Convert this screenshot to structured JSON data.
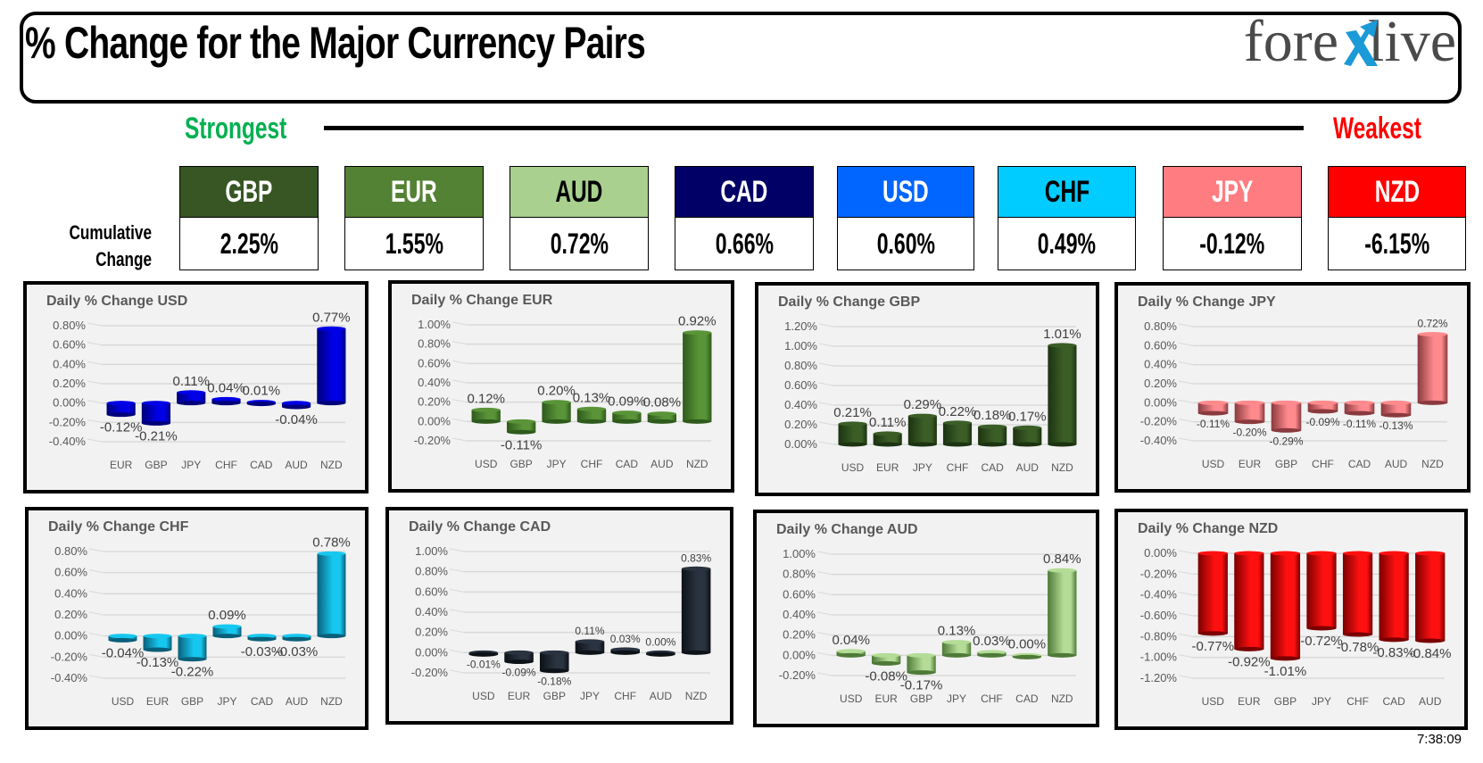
{
  "header": {
    "title": "% Change for the Major Currency Pairs",
    "logo": {
      "left": "fore",
      "mark": "x",
      "right": "live"
    }
  },
  "scale": {
    "strongest_label": "Strongest",
    "weakest_label": "Weakest"
  },
  "cumulative": {
    "label_line1": "Cumulative",
    "label_line2": "Change",
    "currencies": [
      {
        "code": "GBP",
        "value": "2.25%",
        "bg": "#375623",
        "fg": "#ffffff"
      },
      {
        "code": "EUR",
        "value": "1.55%",
        "bg": "#548235",
        "fg": "#ffffff"
      },
      {
        "code": "AUD",
        "value": "0.72%",
        "bg": "#a9d08e",
        "fg": "#000000"
      },
      {
        "code": "CAD",
        "value": "0.66%",
        "bg": "#000066",
        "fg": "#ffffff"
      },
      {
        "code": "USD",
        "value": "0.60%",
        "bg": "#0066ff",
        "fg": "#ffffff"
      },
      {
        "code": "CHF",
        "value": "0.49%",
        "bg": "#00ccff",
        "fg": "#000000"
      },
      {
        "code": "JPY",
        "value": "-0.12%",
        "bg": "#ff7c80",
        "fg": "#ffffff"
      },
      {
        "code": "NZD",
        "value": "-6.15%",
        "bg": "#ff0000",
        "fg": "#ffffff"
      }
    ]
  },
  "timestamp": "7:38:09",
  "chart_data": [
    {
      "type": "bar",
      "title": "Daily % Change USD",
      "categories": [
        "EUR",
        "GBP",
        "JPY",
        "CHF",
        "CAD",
        "AUD",
        "NZD"
      ],
      "values": [
        -0.12,
        -0.21,
        0.11,
        0.04,
        0.01,
        -0.04,
        0.77
      ],
      "labels": [
        "-0.12%",
        "-0.21%",
        "0.11%",
        "0.04%",
        "0.01%",
        "-0.04%",
        "0.77%"
      ],
      "yticks": [
        "0.80%",
        "0.60%",
        "0.40%",
        "0.20%",
        "0.00%",
        "-0.20%",
        "-0.40%"
      ],
      "ylim": [
        -0.4,
        0.8
      ],
      "color": "#0000e6",
      "color_dark": "#00007a",
      "label_size": 15,
      "xlabel": "",
      "ylabel": "",
      "grid": true,
      "legend": "none"
    },
    {
      "type": "bar",
      "title": "Daily % Change EUR",
      "categories": [
        "USD",
        "GBP",
        "JPY",
        "CHF",
        "CAD",
        "AUD",
        "NZD"
      ],
      "values": [
        0.12,
        -0.11,
        0.2,
        0.13,
        0.09,
        0.08,
        0.92
      ],
      "labels": [
        "0.12%",
        "-0.11%",
        "0.20%",
        "0.13%",
        "0.09%",
        "0.08%",
        "0.92%"
      ],
      "yticks": [
        "1.00%",
        "0.80%",
        "0.60%",
        "0.40%",
        "0.20%",
        "0.00%",
        "-0.20%"
      ],
      "ylim": [
        -0.2,
        1.0
      ],
      "color": "#5a9438",
      "color_dark": "#2e5a1c",
      "label_size": 15,
      "xlabel": "",
      "ylabel": "",
      "grid": true,
      "legend": "none"
    },
    {
      "type": "bar",
      "title": "Daily % Change GBP",
      "categories": [
        "USD",
        "EUR",
        "JPY",
        "CHF",
        "CAD",
        "AUD",
        "NZD"
      ],
      "values": [
        0.21,
        0.11,
        0.29,
        0.22,
        0.18,
        0.17,
        1.01
      ],
      "labels": [
        "0.21%",
        "0.11%",
        "0.29%",
        "0.22%",
        "0.18%",
        "0.17%",
        "1.01%"
      ],
      "yticks": [
        "1.20%",
        "1.00%",
        "0.80%",
        "0.60%",
        "0.40%",
        "0.20%",
        "0.00%"
      ],
      "ylim": [
        0.0,
        1.2
      ],
      "color": "#3b5e27",
      "color_dark": "#1c3311",
      "label_size": 15,
      "xlabel": "",
      "ylabel": "",
      "grid": true,
      "legend": "none"
    },
    {
      "type": "bar",
      "title": "Daily % Change JPY",
      "categories": [
        "USD",
        "EUR",
        "GBP",
        "CHF",
        "CAD",
        "AUD",
        "NZD"
      ],
      "values": [
        -0.11,
        -0.2,
        -0.29,
        -0.09,
        -0.11,
        -0.13,
        0.72
      ],
      "labels": [
        "-0.11%",
        "-0.20%",
        "-0.29%",
        "-0.09%",
        "-0.11%",
        "-0.13%",
        "0.72%"
      ],
      "yticks": [
        "0.80%",
        "0.60%",
        "0.40%",
        "0.20%",
        "0.00%",
        "-0.20%",
        "-0.40%"
      ],
      "ylim": [
        -0.4,
        0.8
      ],
      "color": "#ff8a8e",
      "color_dark": "#8a3a3e",
      "label_size": 12,
      "xlabel": "",
      "ylabel": "",
      "grid": true,
      "legend": "none"
    },
    {
      "type": "bar",
      "title": "Daily % Change CHF",
      "categories": [
        "USD",
        "EUR",
        "GBP",
        "JPY",
        "CAD",
        "AUD",
        "NZD"
      ],
      "values": [
        -0.04,
        -0.13,
        -0.22,
        0.09,
        -0.03,
        -0.03,
        0.78
      ],
      "labels": [
        "-0.04%",
        "-0.13%",
        "-0.22%",
        "0.09%",
        "-0.03%",
        "-0.03%",
        "0.78%"
      ],
      "yticks": [
        "0.80%",
        "0.60%",
        "0.40%",
        "0.20%",
        "0.00%",
        "-0.20%",
        "-0.40%"
      ],
      "ylim": [
        -0.4,
        0.8
      ],
      "color": "#16c8f0",
      "color_dark": "#0a5f7a",
      "label_size": 15,
      "xlabel": "",
      "ylabel": "",
      "grid": true,
      "legend": "none"
    },
    {
      "type": "bar",
      "title": "Daily % Change CAD",
      "categories": [
        "USD",
        "EUR",
        "GBP",
        "JPY",
        "CHF",
        "AUD",
        "NZD"
      ],
      "values": [
        -0.01,
        -0.09,
        -0.18,
        0.11,
        0.03,
        0.0,
        0.83
      ],
      "labels": [
        "-0.01%",
        "-0.09%",
        "-0.18%",
        "0.11%",
        "0.03%",
        "0.00%",
        "0.83%"
      ],
      "yticks": [
        "1.00%",
        "0.80%",
        "0.60%",
        "0.40%",
        "0.20%",
        "0.00%",
        "-0.20%"
      ],
      "ylim": [
        -0.2,
        1.0
      ],
      "color": "#2a3340",
      "color_dark": "#0d1218",
      "label_size": 12,
      "xlabel": "",
      "ylabel": "",
      "grid": true,
      "legend": "none"
    },
    {
      "type": "bar",
      "title": "Daily % Change AUD",
      "categories": [
        "USD",
        "EUR",
        "GBP",
        "JPY",
        "CHF",
        "CAD",
        "NZD"
      ],
      "values": [
        0.04,
        -0.08,
        -0.17,
        0.13,
        0.03,
        0.0,
        0.84
      ],
      "labels": [
        "0.04%",
        "-0.08%",
        "-0.17%",
        "0.13%",
        "0.03%",
        "0.00%",
        "0.84%"
      ],
      "yticks": [
        "1.00%",
        "0.80%",
        "0.60%",
        "0.40%",
        "0.20%",
        "0.00%",
        "-0.20%"
      ],
      "ylim": [
        -0.2,
        1.0
      ],
      "color": "#b4dc96",
      "color_dark": "#4e7a38",
      "label_size": 15,
      "xlabel": "",
      "ylabel": "",
      "grid": true,
      "legend": "none"
    },
    {
      "type": "bar",
      "title": "Daily % Change NZD",
      "categories": [
        "USD",
        "EUR",
        "GBP",
        "JPY",
        "CHF",
        "CAD",
        "AUD"
      ],
      "values": [
        -0.77,
        -0.92,
        -1.01,
        -0.72,
        -0.78,
        -0.83,
        -0.84
      ],
      "labels": [
        "-0.77%",
        "-0.92%",
        "-1.01%",
        "-0.72%",
        "-0.78%",
        "-0.83%",
        "-0.84%"
      ],
      "yticks": [
        "0.00%",
        "-0.20%",
        "-0.40%",
        "-0.60%",
        "-0.80%",
        "-1.00%",
        "-1.20%"
      ],
      "ylim": [
        -1.2,
        0.0
      ],
      "color": "#ff1010",
      "color_dark": "#7a0000",
      "label_size": 15,
      "xlabel": "",
      "ylabel": "",
      "grid": true,
      "legend": "none"
    }
  ]
}
